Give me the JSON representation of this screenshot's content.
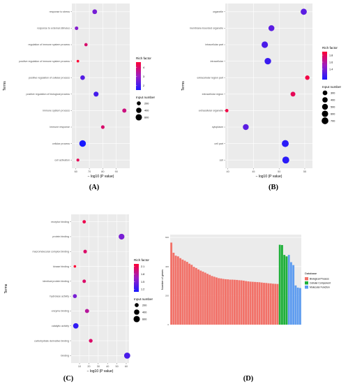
{
  "colors": {
    "bp": "#f27168",
    "cc": "#1fb03a",
    "mf": "#5d9cf0",
    "rich_low": "#1a1aff",
    "rich_mid": "#9b1fc4",
    "rich_high": "#ff0033"
  },
  "chart_data": [
    {
      "type": "scatter",
      "panel": "(A)",
      "ylabel": "Terms",
      "xlabel": "− log10 (P value)",
      "x_ticks": [
        60,
        70,
        80,
        90
      ],
      "xlim": [
        57,
        100
      ],
      "terms": [
        "response to stress",
        "response to external stimulus",
        "regulation of immune system process",
        "positive regulation of immune system process",
        "positive regulation of cellular process",
        "positive regulation of biological process",
        "immune system process",
        "immune response",
        "cellular process",
        "cell activation"
      ],
      "points": [
        {
          "term": "response to stress",
          "x": 74,
          "rich": 2.6,
          "count": 300
        },
        {
          "term": "response to external stimulus",
          "x": 60.5,
          "rich": 2.8,
          "count": 150
        },
        {
          "term": "regulation of immune system process",
          "x": 67.5,
          "rich": 4.0,
          "count": 120
        },
        {
          "term": "positive regulation of immune system process",
          "x": 61.5,
          "rich": 4.6,
          "count": 60
        },
        {
          "term": "positive regulation of cellular process",
          "x": 65,
          "rich": 2.2,
          "count": 280
        },
        {
          "term": "positive regulation of biological process",
          "x": 75,
          "rich": 2.0,
          "count": 340
        },
        {
          "term": "immune system process",
          "x": 96,
          "rich": 3.8,
          "count": 220
        },
        {
          "term": "immune response",
          "x": 80,
          "rich": 4.0,
          "count": 150
        },
        {
          "term": "cellular process",
          "x": 65,
          "rich": 1.0,
          "count": 650
        },
        {
          "term": "cell activation",
          "x": 61.5,
          "rich": 4.2,
          "count": 90
        }
      ],
      "legend": {
        "rich_title": "Rich factor",
        "rich_ticks": [
          4,
          3,
          2
        ],
        "rich_range": [
          1.5,
          4.6
        ],
        "size_title": "Input number",
        "size_values": [
          200,
          400,
          600
        ]
      }
    },
    {
      "type": "scatter",
      "panel": "(B)",
      "ylabel": "Terms",
      "xlabel": "− log10 (P value)",
      "x_ticks": [
        40,
        45,
        50,
        55
      ],
      "xlim": [
        39.5,
        56.5
      ],
      "terms": [
        "organelle",
        "membrane-bounded organelle",
        "intracellular part",
        "intracellular",
        "extracellular region part",
        "extracellular region",
        "extracellular organelle",
        "cytoplasm",
        "cell part",
        "cell"
      ],
      "points": [
        {
          "term": "organelle",
          "x": 54.8,
          "rich": 1.3,
          "count": 560
        },
        {
          "term": "membrane-bounded organelle",
          "x": 48.5,
          "rich": 1.3,
          "count": 520
        },
        {
          "term": "intracellular part",
          "x": 47.2,
          "rich": 1.25,
          "count": 620
        },
        {
          "term": "intracellular",
          "x": 47.8,
          "rich": 1.2,
          "count": 640
        },
        {
          "term": "extracellular region part",
          "x": 55.5,
          "rich": 1.85,
          "count": 260
        },
        {
          "term": "extracellular region",
          "x": 52.7,
          "rich": 1.8,
          "count": 320
        },
        {
          "term": "extracellular organelle",
          "x": 39.8,
          "rich": 1.85,
          "count": 120
        },
        {
          "term": "cytoplasm",
          "x": 43.5,
          "rich": 1.3,
          "count": 500
        },
        {
          "term": "cell part",
          "x": 51.2,
          "rich": 1.15,
          "count": 740
        },
        {
          "term": "cell",
          "x": 51.3,
          "rich": 1.15,
          "count": 740
        }
      ],
      "legend": {
        "rich_title": "Rich factor",
        "rich_ticks": [
          1.8,
          1.6,
          1.4
        ],
        "rich_range": [
          1.1,
          1.9
        ],
        "size_title": "Input number",
        "size_values": [
          300,
          400,
          500,
          600,
          700
        ]
      }
    },
    {
      "type": "scatter",
      "panel": "(C)",
      "ylabel": "Terms",
      "xlabel": "− log10 (P value)",
      "x_ticks": [
        10,
        20,
        30,
        40,
        50,
        60
      ],
      "xlim": [
        1,
        63
      ],
      "terms": [
        "receptor binding",
        "protein binding",
        "macromolecular complex binding",
        "kinase binding",
        "identical protein binding",
        "hydrolase activity",
        "enzyme binding",
        "catalytic activity",
        "carbohydrate derivative binding",
        "binding"
      ],
      "points": [
        {
          "term": "receptor binding",
          "x": 15,
          "rich": 2.1,
          "count": 130
        },
        {
          "term": "protein binding",
          "x": 55,
          "rich": 1.5,
          "count": 480
        },
        {
          "term": "macromolecular complex binding",
          "x": 16,
          "rich": 2.0,
          "count": 150
        },
        {
          "term": "kinase binding",
          "x": 5,
          "rich": 2.2,
          "count": 60
        },
        {
          "term": "identical protein binding",
          "x": 15,
          "rich": 2.0,
          "count": 140
        },
        {
          "term": "hydrolase activity",
          "x": 5,
          "rich": 1.5,
          "count": 200
        },
        {
          "term": "enzyme binding",
          "x": 18,
          "rich": 1.8,
          "count": 220
        },
        {
          "term": "catalytic activity",
          "x": 6,
          "rich": 1.2,
          "count": 420
        },
        {
          "term": "carbohydrate derivative binding",
          "x": 22,
          "rich": 2.0,
          "count": 170
        },
        {
          "term": "binding",
          "x": 61,
          "rich": 1.3,
          "count": 560
        }
      ],
      "legend": {
        "rich_title": "Rich factor",
        "rich_ticks": [
          2.1,
          1.8,
          1.5,
          1.2
        ],
        "rich_range": [
          1.1,
          2.2
        ],
        "size_title": "Input number",
        "size_values": [
          200,
          400,
          600
        ]
      }
    },
    {
      "type": "bar",
      "panel": "(D)",
      "ylabel": "Number of genes",
      "y_ticks": [
        0,
        200,
        400,
        600
      ],
      "ylim": [
        0,
        620
      ],
      "legend_title": "Database",
      "series": [
        {
          "name": "Biological Process",
          "values": [
            565,
            495,
            475,
            470,
            458,
            448,
            440,
            432,
            420,
            412,
            398,
            390,
            380,
            372,
            365,
            358,
            350,
            343,
            335,
            330,
            325,
            320,
            318,
            315,
            313,
            312,
            310,
            310,
            309,
            308,
            306,
            305,
            303,
            300,
            298,
            296,
            295,
            294,
            293,
            292,
            290,
            288,
            287,
            285,
            284,
            282,
            281,
            280
          ]
        },
        {
          "name": "Cellular Component",
          "values": [
            550,
            548,
            480,
            470
          ]
        },
        {
          "name": "Molecular Function",
          "values": [
            480,
            430,
            410,
            270,
            255,
            252
          ]
        }
      ]
    }
  ]
}
